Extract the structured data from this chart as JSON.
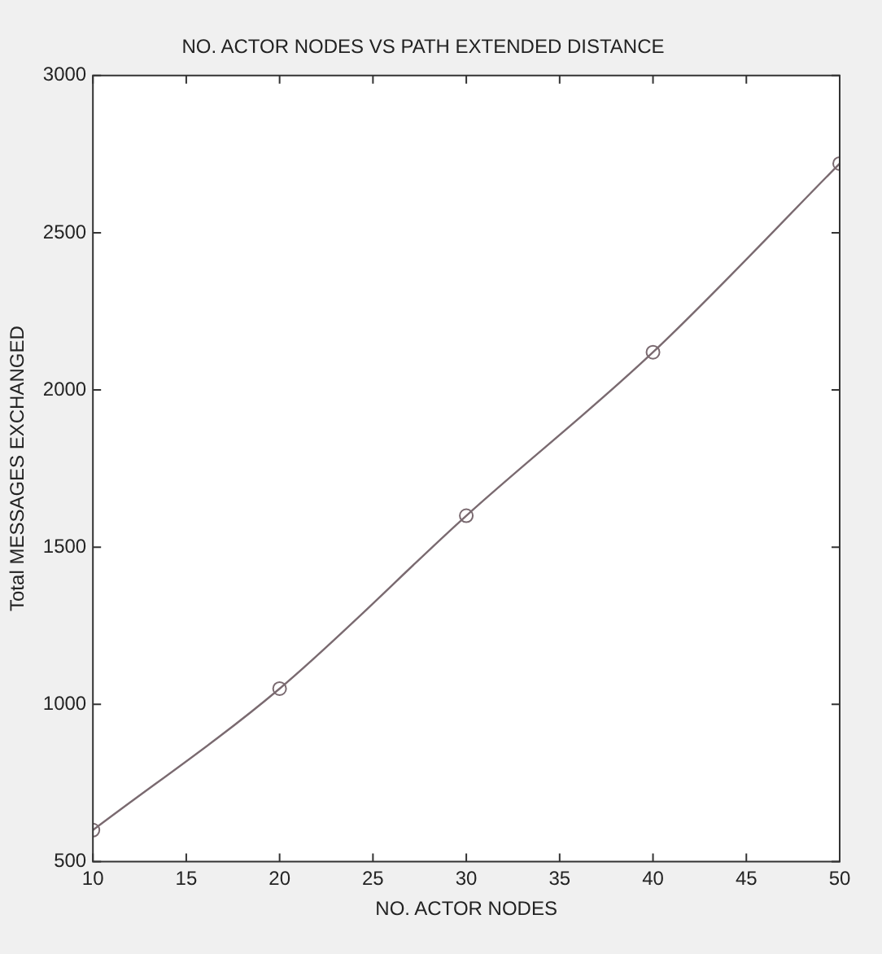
{
  "chart_data": {
    "type": "line",
    "title": "NO. ACTOR NODES VS PATH EXTENDED DISTANCE",
    "xlabel": "NO. ACTOR NODES",
    "ylabel": "Total MESSAGES EXCHANGED",
    "x": [
      10,
      20,
      30,
      40,
      50
    ],
    "series": [
      {
        "color": "#7a6a70",
        "values": [
          600,
          1050,
          1600,
          2120,
          2720
        ]
      }
    ],
    "xlim": [
      10,
      50
    ],
    "xticks": [
      10,
      15,
      20,
      25,
      30,
      35,
      40,
      45,
      50
    ],
    "ylim": [
      500,
      3000
    ],
    "yticks": [
      500,
      1000,
      1500,
      2000,
      2500,
      3000
    ],
    "grid": false,
    "legend": false,
    "marker": "circle",
    "line_style": "solid"
  }
}
